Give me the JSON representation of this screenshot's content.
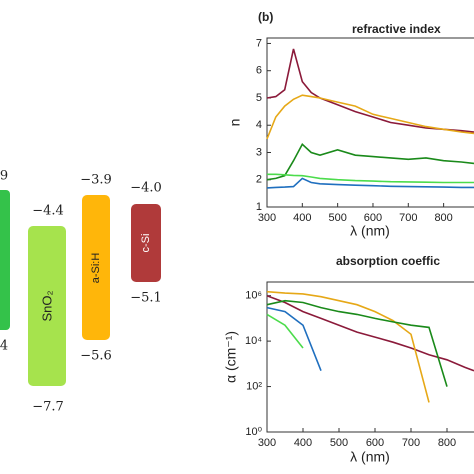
{
  "band_diagram": {
    "items": [
      {
        "top": "9",
        "bottom": "4"
      },
      {
        "label": "SnO₂",
        "top": "−4.4",
        "bottom": "−7.7"
      },
      {
        "label": "a-Si:H",
        "top": "−3.9",
        "bottom": "−5.6"
      },
      {
        "label": "c-Si",
        "top": "−4.0",
        "bottom": "−5.1"
      }
    ]
  },
  "chart_data": [
    {
      "type": "line",
      "panel_label": "(b)",
      "title": "refractive index",
      "xlabel": "λ (nm)",
      "ylabel": "n",
      "x": [
        300,
        325,
        350,
        375,
        400,
        425,
        450,
        500,
        550,
        600,
        650,
        700,
        750,
        800,
        850,
        886
      ],
      "series": [
        {
          "color": "#8b1a3a",
          "values": [
            5.0,
            5.05,
            5.3,
            6.8,
            5.6,
            5.2,
            5.0,
            4.75,
            4.5,
            4.3,
            4.1,
            4.0,
            3.9,
            3.85,
            3.8,
            3.75
          ]
        },
        {
          "color": "#e6a817",
          "values": [
            3.5,
            4.3,
            4.7,
            4.95,
            5.1,
            5.05,
            5.0,
            4.85,
            4.7,
            4.4,
            4.25,
            4.1,
            3.95,
            3.85,
            3.75,
            3.7
          ]
        },
        {
          "color": "#1a8a1a",
          "values": [
            2.0,
            2.05,
            2.15,
            2.7,
            3.3,
            3.0,
            2.9,
            3.1,
            2.9,
            2.85,
            2.8,
            2.75,
            2.8,
            2.7,
            2.65,
            2.6
          ]
        },
        {
          "color": "#4cdc4c",
          "values": [
            2.2,
            2.2,
            2.18,
            2.16,
            2.15,
            2.1,
            2.05,
            2.0,
            1.97,
            1.95,
            1.93,
            1.92,
            1.91,
            1.9,
            1.9,
            1.9
          ]
        },
        {
          "color": "#1f6fbf",
          "values": [
            1.7,
            1.72,
            1.73,
            1.75,
            2.05,
            1.9,
            1.85,
            1.82,
            1.8,
            1.78,
            1.76,
            1.75,
            1.74,
            1.73,
            1.72,
            1.72
          ]
        }
      ],
      "xlim": [
        300,
        886
      ],
      "ylim": [
        1,
        7.2
      ],
      "xticks": [
        300,
        400,
        500,
        600,
        700,
        800
      ],
      "yticks": [
        1,
        2,
        3,
        4,
        5,
        6,
        7
      ]
    },
    {
      "type": "line",
      "title": "absorption coeffic",
      "xlabel": "λ (nm)",
      "ylabel": "α (cm⁻¹)",
      "yscale": "log",
      "x": [
        300,
        350,
        400,
        450,
        500,
        550,
        600,
        650,
        700,
        750,
        800,
        850,
        875
      ],
      "series": [
        {
          "color": "#8b1a3a",
          "values": [
            1000000,
            500000,
            200000,
            100000,
            50000,
            25000,
            15000,
            9000,
            5000,
            2500,
            1500,
            700,
            500
          ]
        },
        {
          "color": "#e6a817",
          "values": [
            1500000,
            1300000,
            1200000,
            900000,
            600000,
            400000,
            200000,
            80000,
            20000,
            20,
            null,
            null,
            null
          ]
        },
        {
          "color": "#1a8a1a",
          "values": [
            400000,
            600000,
            500000,
            300000,
            200000,
            150000,
            100000,
            70000,
            50000,
            40000,
            100,
            null,
            null
          ]
        },
        {
          "color": "#4cdc4c",
          "values": [
            150000,
            50000,
            5000,
            null,
            null,
            null,
            null,
            null,
            null,
            null,
            null,
            null,
            null
          ]
        },
        {
          "color": "#1f6fbf",
          "values": [
            300000,
            200000,
            50000,
            500,
            null,
            null,
            null,
            null,
            null,
            null,
            null,
            null,
            null
          ]
        }
      ],
      "xlim": [
        300,
        875
      ],
      "ylim": [
        1,
        4000000
      ],
      "xticks": [
        300,
        400,
        500,
        600,
        700,
        800
      ],
      "yticks": [
        {
          "value": 1,
          "label": "10⁰"
        },
        {
          "value": 100,
          "label": "10²"
        },
        {
          "value": 10000,
          "label": "10⁴"
        },
        {
          "value": 1000000,
          "label": "10⁶"
        }
      ]
    }
  ]
}
